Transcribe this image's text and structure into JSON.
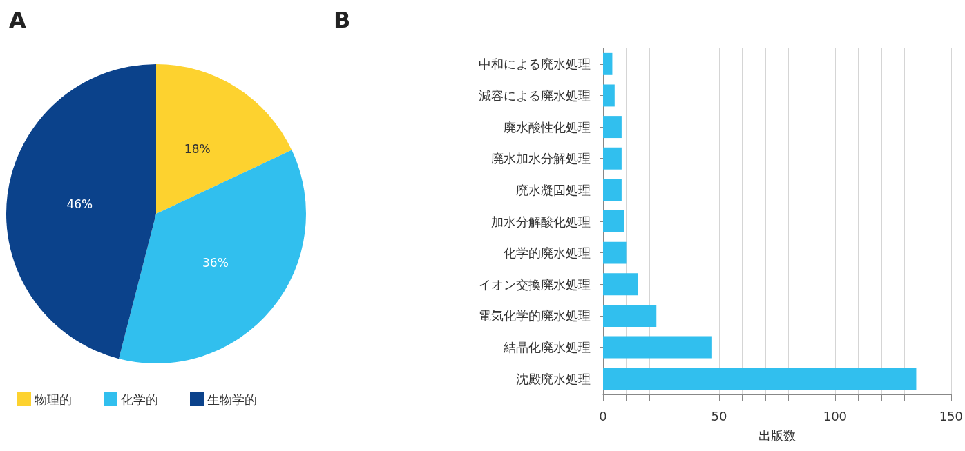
{
  "chart_data": [
    {
      "type": "pie",
      "title": "A",
      "categories": [
        "物理的",
        "化学的",
        "生物学的"
      ],
      "values": [
        18,
        36,
        46
      ],
      "colors": [
        "#fdd22f",
        "#31bfee",
        "#0b428b"
      ],
      "value_labels": [
        "18%",
        "36%",
        "46%"
      ],
      "legend": "bottom left"
    },
    {
      "type": "bar",
      "title": "B",
      "orientation": "horizontal",
      "categories": [
        "中和による廃水処理",
        "減容による廃水処理",
        "廃水酸性化処理",
        "廃水加水分解処理",
        "廃水凝固処理",
        "加水分解酸化処理",
        "化学的廃水処理",
        "イオン交換廃水処理",
        "電気化学的廃水処理",
        "結晶化廃水処理",
        "沈殿廃水処理"
      ],
      "values": [
        4,
        5,
        8,
        8,
        8,
        9,
        10,
        15,
        23,
        47,
        135
      ],
      "color": "#31bfee",
      "xlabel": "出版数",
      "xlim": [
        0,
        150
      ],
      "xticks": [
        0,
        {
          "value": 10,
          "label": null
        },
        {
          "value": 20,
          "label": null
        },
        {
          "value": 30,
          "label": null
        },
        {
          "value": 40,
          "label": null
        },
        50,
        {
          "value": 60,
          "label": null
        },
        {
          "value": 70,
          "label": null
        },
        {
          "value": 80,
          "label": null
        },
        {
          "value": 90,
          "label": null
        },
        100,
        {
          "value": 110,
          "label": null
        },
        {
          "value": 120,
          "label": null
        },
        {
          "value": 130,
          "label": null
        },
        {
          "value": 140,
          "label": null
        },
        150
      ],
      "grid": "x"
    }
  ]
}
